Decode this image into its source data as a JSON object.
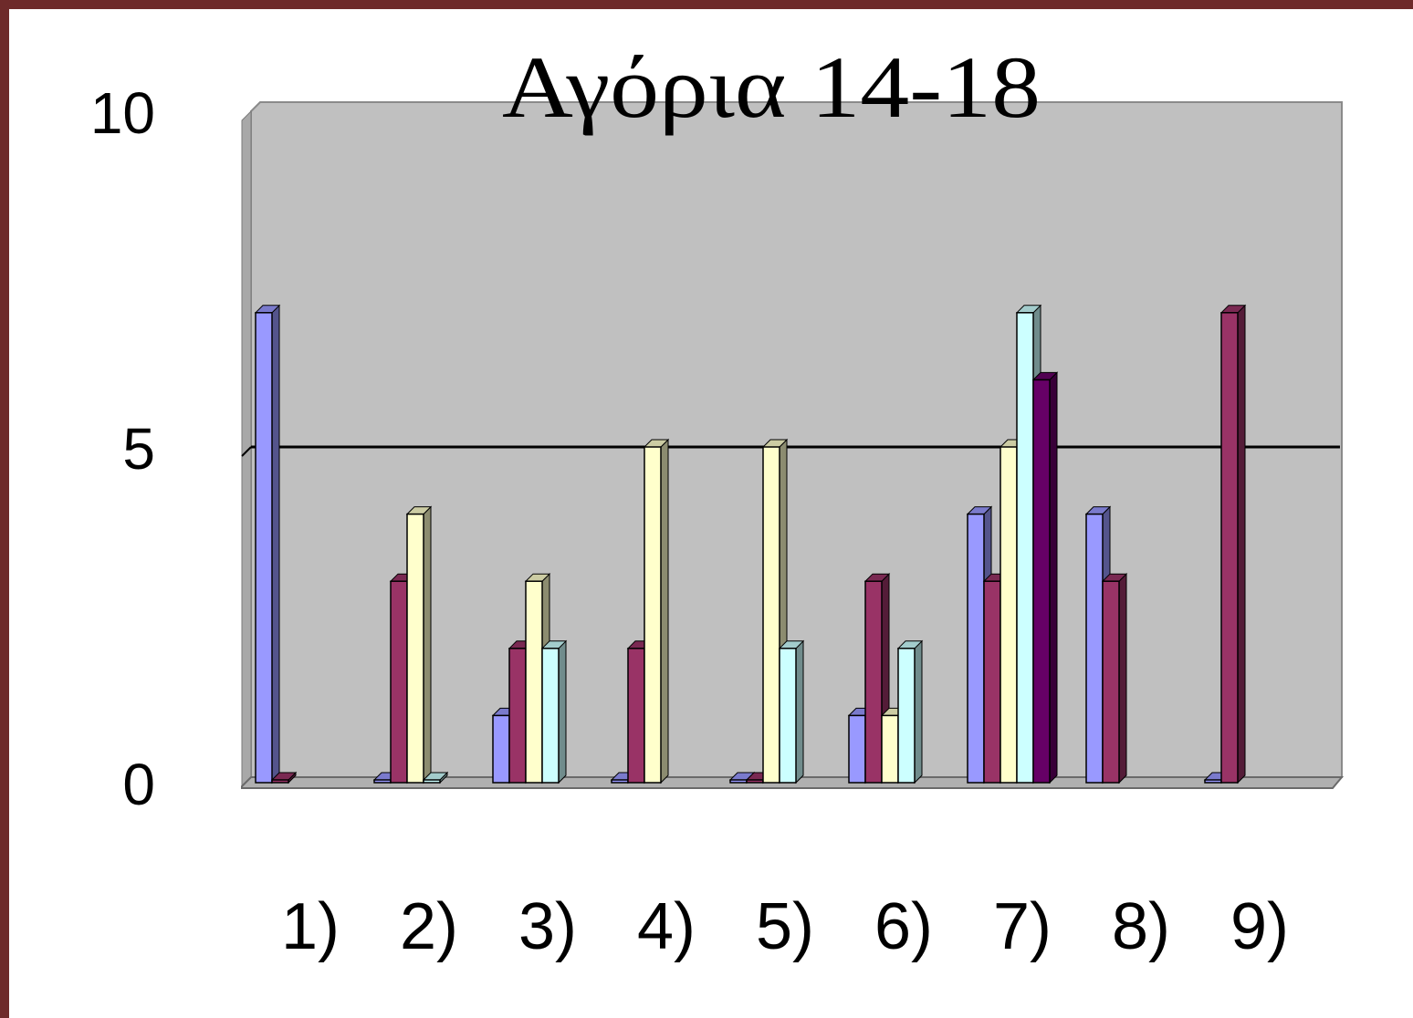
{
  "chart_data": {
    "type": "bar",
    "title": "Αγόρια 14-18",
    "xlabel": "",
    "ylabel": "",
    "ylim": [
      0,
      10
    ],
    "yticks": [
      "0",
      "5",
      "10"
    ],
    "grid": "major gridline at 5",
    "legend": "none",
    "categories": [
      "1)",
      "2)",
      "3)",
      "4)",
      "5)",
      "6)",
      "7)",
      "8)",
      "9)"
    ],
    "series": [
      {
        "color": "#9999ff",
        "values": [
          7,
          0,
          1,
          0,
          0,
          1,
          4,
          4,
          0
        ]
      },
      {
        "color": "#993366",
        "values": [
          0,
          3,
          2,
          2,
          0,
          3,
          3,
          3,
          7
        ]
      },
      {
        "color": "#ffffcc",
        "values": [
          null,
          4,
          3,
          5,
          5,
          1,
          5,
          null,
          null
        ]
      },
      {
        "color": "#ccffff",
        "values": [
          null,
          0,
          2,
          null,
          2,
          2,
          7,
          null,
          null
        ]
      },
      {
        "color": "#660066",
        "values": [
          null,
          null,
          null,
          null,
          null,
          null,
          6,
          null,
          null
        ]
      }
    ],
    "colors": {
      "wall": "#c0c0c0",
      "floor": "#b0b0b0",
      "frame_border": "#6e2a2a"
    }
  }
}
